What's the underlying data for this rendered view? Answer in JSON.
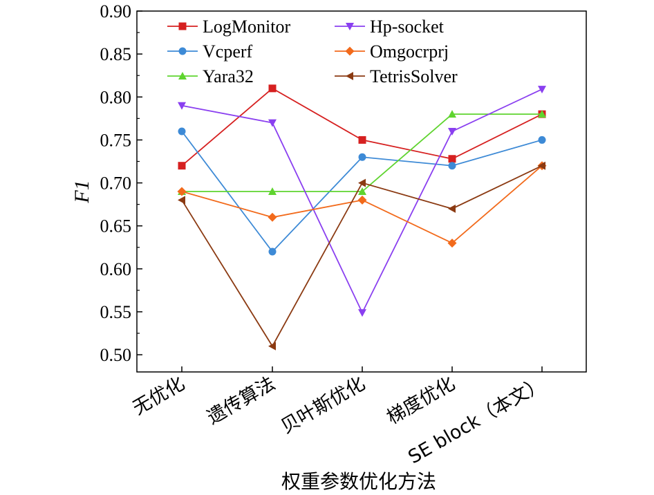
{
  "chart_data": {
    "type": "line",
    "title": "",
    "xlabel": "权重参数优化方法",
    "ylabel": "F1",
    "ylim": [
      0.48,
      0.9
    ],
    "yticks": [
      "0.50",
      "0.55",
      "0.60",
      "0.65",
      "0.70",
      "0.75",
      "0.80",
      "0.85",
      "0.90"
    ],
    "categories": [
      "无优化",
      "遗传算法",
      "贝叶斯优化",
      "梯度优化",
      "SE block（本文）"
    ],
    "legend_position": "top",
    "grid": false,
    "series": [
      {
        "name": "LogMonitor",
        "color": "#d62020",
        "marker": "square",
        "values": [
          0.72,
          0.81,
          0.75,
          0.728,
          0.78
        ]
      },
      {
        "name": "Vcperf",
        "color": "#3d8ad6",
        "marker": "circle",
        "values": [
          0.76,
          0.62,
          0.73,
          0.72,
          0.75
        ]
      },
      {
        "name": "Yara32",
        "color": "#5fd42f",
        "marker": "triangle-up",
        "values": [
          0.69,
          0.69,
          0.69,
          0.78,
          0.78
        ]
      },
      {
        "name": "Hp-socket",
        "color": "#8a3ff0",
        "marker": "triangle-down",
        "values": [
          0.79,
          0.77,
          0.549,
          0.76,
          0.809
        ]
      },
      {
        "name": "Omgocrprj",
        "color": "#f26a1b",
        "marker": "diamond",
        "values": [
          0.69,
          0.66,
          0.68,
          0.63,
          0.72
        ]
      },
      {
        "name": "TetrisSolver",
        "color": "#8b3a12",
        "marker": "triangle-left",
        "values": [
          0.68,
          0.51,
          0.7,
          0.67,
          0.72
        ]
      }
    ]
  }
}
